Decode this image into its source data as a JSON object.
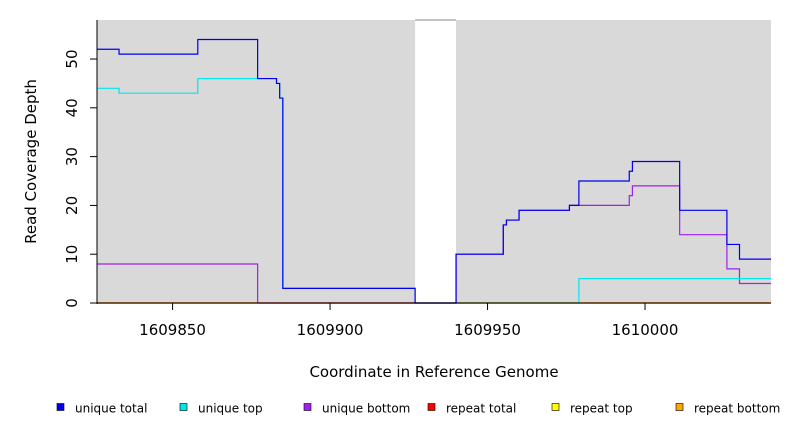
{
  "chart_data": {
    "type": "line",
    "title": "",
    "xlabel": "Coordinate in Reference Genome",
    "ylabel": "Read Coverage Depth",
    "xlim": [
      1609826,
      1610040
    ],
    "ylim": [
      0,
      58
    ],
    "x_ticks": [
      1609850,
      1609900,
      1609950,
      1610000
    ],
    "x_tick_labels": [
      "1609850",
      "1609900",
      "1609950",
      "1610000"
    ],
    "y_ticks": [
      0,
      10,
      20,
      30,
      40,
      50
    ],
    "y_tick_labels": [
      "0",
      "10",
      "20",
      "30",
      "40",
      "50"
    ],
    "shaded_regions": [
      {
        "x0": 1609826,
        "x1": 1609927,
        "color": "#d9d9d9"
      },
      {
        "x0": 1609940,
        "x1": 1610040,
        "color": "#d9d9d9"
      }
    ],
    "legend_position": "bottom",
    "grid": false,
    "series": [
      {
        "name": "unique total",
        "color": "#0000ee",
        "points": [
          [
            1609826,
            52
          ],
          [
            1609833,
            52
          ],
          [
            1609833,
            51
          ],
          [
            1609858,
            51
          ],
          [
            1609858,
            54
          ],
          [
            1609877,
            54
          ],
          [
            1609877,
            46
          ],
          [
            1609883,
            46
          ],
          [
            1609883,
            45
          ],
          [
            1609884,
            45
          ],
          [
            1609884,
            42
          ],
          [
            1609885,
            42
          ],
          [
            1609885,
            3
          ],
          [
            1609927,
            3
          ],
          [
            1609927,
            0
          ],
          [
            1609940,
            0
          ],
          [
            1609940,
            10
          ],
          [
            1609955,
            10
          ],
          [
            1609955,
            16
          ],
          [
            1609956,
            16
          ],
          [
            1609956,
            17
          ],
          [
            1609960,
            17
          ],
          [
            1609960,
            19
          ],
          [
            1609976,
            19
          ],
          [
            1609976,
            20
          ],
          [
            1609979,
            20
          ],
          [
            1609979,
            25
          ],
          [
            1609995,
            25
          ],
          [
            1609995,
            27
          ],
          [
            1609996,
            27
          ],
          [
            1609996,
            29
          ],
          [
            1610011,
            29
          ],
          [
            1610011,
            19
          ],
          [
            1610026,
            19
          ],
          [
            1610026,
            12
          ],
          [
            1610030,
            12
          ],
          [
            1610030,
            9
          ],
          [
            1610040,
            9
          ]
        ]
      },
      {
        "name": "unique top",
        "color": "#00e5ee",
        "points": [
          [
            1609826,
            44
          ],
          [
            1609833,
            44
          ],
          [
            1609833,
            43
          ],
          [
            1609858,
            43
          ],
          [
            1609858,
            46
          ],
          [
            1609877,
            46
          ],
          [
            1609877,
            46
          ],
          [
            1609883,
            46
          ],
          [
            1609883,
            45
          ],
          [
            1609884,
            45
          ],
          [
            1609884,
            42
          ],
          [
            1609885,
            42
          ],
          [
            1609885,
            3
          ],
          [
            1609927,
            3
          ],
          [
            1609927,
            0
          ],
          [
            1609979,
            0
          ],
          [
            1609979,
            5
          ],
          [
            1610040,
            5
          ]
        ]
      },
      {
        "name": "unique bottom",
        "color": "#a020f0",
        "points": [
          [
            1609826,
            8
          ],
          [
            1609877,
            8
          ],
          [
            1609877,
            0
          ],
          [
            1609940,
            0
          ],
          [
            1609940,
            10
          ],
          [
            1609955,
            10
          ],
          [
            1609955,
            16
          ],
          [
            1609956,
            16
          ],
          [
            1609956,
            17
          ],
          [
            1609960,
            17
          ],
          [
            1609960,
            19
          ],
          [
            1609976,
            19
          ],
          [
            1609976,
            20
          ],
          [
            1609995,
            20
          ],
          [
            1609995,
            22
          ],
          [
            1609996,
            22
          ],
          [
            1609996,
            24
          ],
          [
            1610011,
            24
          ],
          [
            1610011,
            14
          ],
          [
            1610026,
            14
          ],
          [
            1610026,
            7
          ],
          [
            1610030,
            7
          ],
          [
            1610030,
            4
          ],
          [
            1610040,
            4
          ]
        ]
      },
      {
        "name": "repeat total",
        "color": "#ff0000",
        "points": [
          [
            1609826,
            0
          ],
          [
            1610040,
            0
          ]
        ]
      },
      {
        "name": "repeat top",
        "color": "#ffff00",
        "points": [
          [
            1609826,
            0
          ],
          [
            1610040,
            0
          ]
        ]
      },
      {
        "name": "repeat bottom",
        "color": "#ffa500",
        "points": [
          [
            1609826,
            0
          ],
          [
            1610040,
            0
          ]
        ]
      }
    ]
  }
}
